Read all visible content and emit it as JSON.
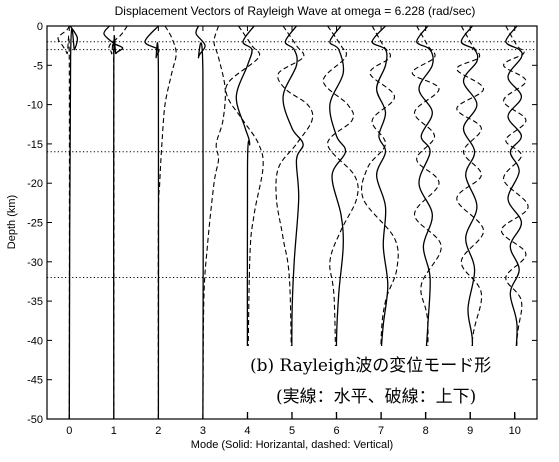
{
  "chart_data": {
    "type": "line",
    "title": "Displacement Vectors of Rayleigh Wave at omega = 6.228 (rad/sec)",
    "xlabel": "Mode (Solid: Horizantal, dashed: Vertical)",
    "ylabel": "Depth (km)",
    "xlim": [
      -0.5,
      10.5
    ],
    "ylim": [
      -50,
      0
    ],
    "x_ticks": [
      0,
      1,
      2,
      3,
      4,
      5,
      6,
      7,
      8,
      9,
      10
    ],
    "y_ticks": [
      0,
      -5,
      -10,
      -15,
      -20,
      -25,
      -30,
      -35,
      -40,
      -45,
      -50
    ],
    "layer_boundaries_km": [
      -2,
      -3,
      -16,
      -32
    ],
    "line_styles": {
      "horizontal": "solid",
      "vertical": "dashed"
    },
    "modes": [
      {
        "mode": 0,
        "horizontal": [
          [
            0.02,
            0
          ],
          [
            0.18,
            -1.5
          ],
          [
            0.12,
            -3
          ],
          [
            0.03,
            -4
          ],
          [
            0,
            -50
          ]
        ],
        "vertical": [
          [
            0,
            0
          ],
          [
            -0.05,
            -0.5
          ],
          [
            -0.25,
            -1.5
          ],
          [
            -0.15,
            -2.5
          ],
          [
            -0.05,
            -3.5
          ],
          [
            0,
            -5
          ],
          [
            0,
            -50
          ]
        ]
      },
      {
        "mode": 1,
        "horizontal": [
          [
            -0.1,
            0
          ],
          [
            -0.22,
            -1
          ],
          [
            0,
            -2.2
          ],
          [
            0.2,
            -2.8
          ],
          [
            0.05,
            -3.5
          ],
          [
            0,
            -5
          ],
          [
            0,
            -50
          ]
        ],
        "vertical": [
          [
            0.3,
            0
          ],
          [
            0.15,
            -1.2
          ],
          [
            -0.1,
            -2.5
          ],
          [
            -0.05,
            -3.5
          ],
          [
            0,
            -6
          ],
          [
            0,
            -50
          ]
        ]
      },
      {
        "mode": 2,
        "horizontal": [
          [
            0,
            0
          ],
          [
            -0.3,
            -2
          ],
          [
            0,
            -3
          ],
          [
            -0.05,
            -4
          ],
          [
            0,
            -6
          ],
          [
            0,
            -50
          ]
        ],
        "vertical": [
          [
            0.15,
            0
          ],
          [
            0.3,
            -1.5
          ],
          [
            0.4,
            -3.5
          ],
          [
            0.3,
            -6
          ],
          [
            0.15,
            -10
          ],
          [
            0.08,
            -15
          ],
          [
            0.03,
            -20
          ],
          [
            0,
            -25
          ],
          [
            0,
            -50
          ]
        ]
      },
      {
        "mode": 3,
        "horizontal": [
          [
            -0.1,
            0
          ],
          [
            -0.15,
            -1
          ],
          [
            0.05,
            -2.5
          ],
          [
            -0.1,
            -4
          ],
          [
            0,
            -6
          ],
          [
            0,
            -50
          ]
        ],
        "vertical": [
          [
            0.35,
            0
          ],
          [
            0.25,
            -2
          ],
          [
            0.35,
            -4
          ],
          [
            0.5,
            -8
          ],
          [
            0.45,
            -12
          ],
          [
            0.3,
            -15
          ],
          [
            0.35,
            -17
          ],
          [
            0.25,
            -20
          ],
          [
            0.1,
            -28
          ],
          [
            0.02,
            -35
          ],
          [
            0,
            -50
          ]
        ]
      },
      {
        "mode": 4,
        "horizontal": [
          [
            0.15,
            0
          ],
          [
            -0.1,
            -2
          ],
          [
            0.1,
            -3
          ],
          [
            0,
            -5
          ],
          [
            -0.25,
            -9
          ],
          [
            -0.05,
            -13
          ],
          [
            0.05,
            -15
          ],
          [
            0,
            -18
          ],
          [
            0,
            -50
          ]
        ],
        "vertical": [
          [
            -0.2,
            0
          ],
          [
            0.1,
            -2.5
          ],
          [
            0.25,
            -4
          ],
          [
            -0.4,
            -7
          ],
          [
            -0.45,
            -9
          ],
          [
            -0.1,
            -12
          ],
          [
            0.25,
            -15
          ],
          [
            0.35,
            -18
          ],
          [
            0.15,
            -24
          ],
          [
            0.05,
            -30
          ],
          [
            0,
            -50
          ]
        ]
      },
      {
        "mode": 5,
        "horizontal": [
          [
            0.1,
            0
          ],
          [
            -0.15,
            -2
          ],
          [
            0.05,
            -3
          ],
          [
            0.1,
            -5
          ],
          [
            -0.2,
            -9
          ],
          [
            0,
            -13
          ],
          [
            0.25,
            -15
          ],
          [
            0.1,
            -17
          ],
          [
            0.15,
            -22
          ],
          [
            0.05,
            -30
          ],
          [
            0,
            -37
          ],
          [
            0,
            -50
          ]
        ],
        "vertical": [
          [
            -0.2,
            0
          ],
          [
            0.1,
            -2.5
          ],
          [
            0.25,
            -4
          ],
          [
            -0.3,
            -6
          ],
          [
            -0.15,
            -8
          ],
          [
            0.35,
            -10
          ],
          [
            0.45,
            -12
          ],
          [
            0.1,
            -15
          ],
          [
            -0.3,
            -18
          ],
          [
            -0.35,
            -22
          ],
          [
            -0.2,
            -27
          ],
          [
            -0.05,
            -33
          ],
          [
            0,
            -50
          ]
        ]
      },
      {
        "mode": 6,
        "horizontal": [
          [
            0.1,
            0
          ],
          [
            -0.15,
            -2
          ],
          [
            0.05,
            -3
          ],
          [
            0.15,
            -6
          ],
          [
            -0.15,
            -10
          ],
          [
            0,
            -14
          ],
          [
            0.2,
            -16
          ],
          [
            -0.1,
            -19
          ],
          [
            0.1,
            -24
          ],
          [
            0.15,
            -28
          ],
          [
            0.05,
            -34
          ],
          [
            0,
            -40
          ],
          [
            0,
            -50
          ]
        ],
        "vertical": [
          [
            -0.2,
            0
          ],
          [
            0.1,
            -2.5
          ],
          [
            0.2,
            -4
          ],
          [
            -0.3,
            -7
          ],
          [
            0.25,
            -10
          ],
          [
            0.35,
            -12
          ],
          [
            -0.2,
            -15
          ],
          [
            0.4,
            -19
          ],
          [
            0.45,
            -22
          ],
          [
            0.1,
            -26
          ],
          [
            -0.15,
            -30
          ],
          [
            -0.05,
            -35
          ],
          [
            0,
            -50
          ]
        ]
      },
      {
        "mode": 7,
        "horizontal": [
          [
            0.1,
            0
          ],
          [
            -0.2,
            -2
          ],
          [
            0.1,
            -3
          ],
          [
            0.1,
            -5
          ],
          [
            -0.1,
            -8
          ],
          [
            0.1,
            -11
          ],
          [
            -0.05,
            -14
          ],
          [
            0.1,
            -16
          ],
          [
            -0.1,
            -19
          ],
          [
            0.1,
            -23
          ],
          [
            0.05,
            -28
          ],
          [
            0.15,
            -33
          ],
          [
            0.05,
            -38
          ],
          [
            0,
            -42
          ],
          [
            0,
            -50
          ]
        ],
        "vertical": [
          [
            -0.2,
            0
          ],
          [
            0.05,
            -2.5
          ],
          [
            0.2,
            -4
          ],
          [
            -0.25,
            -6
          ],
          [
            0.3,
            -9
          ],
          [
            -0.2,
            -12
          ],
          [
            0.1,
            -15
          ],
          [
            -0.3,
            -18
          ],
          [
            -0.4,
            -22
          ],
          [
            0.3,
            -27
          ],
          [
            0.35,
            -31
          ],
          [
            0.1,
            -35
          ],
          [
            0,
            -40
          ],
          [
            0,
            -50
          ]
        ]
      },
      {
        "mode": 8,
        "horizontal": [
          [
            0.05,
            0
          ],
          [
            -0.2,
            -2
          ],
          [
            0.1,
            -3
          ],
          [
            0.15,
            -5
          ],
          [
            -0.15,
            -8
          ],
          [
            0.15,
            -11
          ],
          [
            -0.1,
            -14
          ],
          [
            0.1,
            -16
          ],
          [
            -0.15,
            -20
          ],
          [
            0.15,
            -24
          ],
          [
            -0.05,
            -28
          ],
          [
            0.1,
            -32
          ],
          [
            0.05,
            -38
          ],
          [
            0,
            -43
          ],
          [
            0,
            -50
          ]
        ],
        "vertical": [
          [
            -0.2,
            0
          ],
          [
            0.05,
            -2.5
          ],
          [
            0.2,
            -4
          ],
          [
            -0.3,
            -6
          ],
          [
            0.3,
            -8
          ],
          [
            -0.25,
            -11
          ],
          [
            0.2,
            -14
          ],
          [
            -0.2,
            -17
          ],
          [
            0.3,
            -20
          ],
          [
            -0.25,
            -24
          ],
          [
            0.35,
            -28
          ],
          [
            -0.1,
            -33
          ],
          [
            0.05,
            -38
          ],
          [
            0,
            -50
          ]
        ]
      },
      {
        "mode": 9,
        "horizontal": [
          [
            0.05,
            0
          ],
          [
            -0.2,
            -2
          ],
          [
            0.1,
            -3
          ],
          [
            0.15,
            -4.5
          ],
          [
            -0.15,
            -7
          ],
          [
            0.15,
            -10
          ],
          [
            -0.15,
            -13
          ],
          [
            0.1,
            -16
          ],
          [
            -0.1,
            -19
          ],
          [
            0.15,
            -23
          ],
          [
            -0.1,
            -27
          ],
          [
            0.1,
            -31
          ],
          [
            -0.05,
            -36
          ],
          [
            0.05,
            -40
          ],
          [
            0,
            -45
          ],
          [
            0,
            -50
          ]
        ],
        "vertical": [
          [
            -0.2,
            0
          ],
          [
            0.05,
            -2.5
          ],
          [
            0.2,
            -4
          ],
          [
            -0.3,
            -5.5
          ],
          [
            0.3,
            -8
          ],
          [
            -0.3,
            -10.5
          ],
          [
            0.25,
            -13
          ],
          [
            -0.15,
            -16
          ],
          [
            0.25,
            -19
          ],
          [
            -0.3,
            -22
          ],
          [
            0.3,
            -26
          ],
          [
            -0.2,
            -30
          ],
          [
            0.25,
            -34
          ],
          [
            0.05,
            -40
          ],
          [
            0,
            -50
          ]
        ]
      },
      {
        "mode": 10,
        "horizontal": [
          [
            0.05,
            0
          ],
          [
            -0.2,
            -2
          ],
          [
            0.1,
            -3
          ],
          [
            0.15,
            -4
          ],
          [
            -0.15,
            -6.5
          ],
          [
            0.15,
            -9
          ],
          [
            -0.15,
            -11.5
          ],
          [
            0.15,
            -14
          ],
          [
            -0.1,
            -16
          ],
          [
            0.1,
            -18.5
          ],
          [
            -0.15,
            -22
          ],
          [
            0.15,
            -25
          ],
          [
            -0.1,
            -28
          ],
          [
            0.1,
            -31
          ],
          [
            -0.1,
            -34
          ],
          [
            0.05,
            -38
          ],
          [
            0,
            -44
          ],
          [
            0,
            -50
          ]
        ],
        "vertical": [
          [
            -0.2,
            0
          ],
          [
            0.05,
            -2.5
          ],
          [
            0.2,
            -3.5
          ],
          [
            -0.25,
            -5
          ],
          [
            0.25,
            -7
          ],
          [
            -0.25,
            -9.5
          ],
          [
            0.25,
            -12
          ],
          [
            -0.2,
            -14.5
          ],
          [
            0.15,
            -16.5
          ],
          [
            -0.25,
            -19.5
          ],
          [
            0.3,
            -23
          ],
          [
            -0.3,
            -26
          ],
          [
            0.25,
            -29
          ],
          [
            -0.2,
            -32
          ],
          [
            0.15,
            -35
          ],
          [
            0.05,
            -40
          ],
          [
            0,
            -50
          ]
        ]
      }
    ],
    "annotation_lines": [
      "(b) Rayleigh波の変位モード形",
      "(実線：水平、破線：上下)"
    ]
  }
}
